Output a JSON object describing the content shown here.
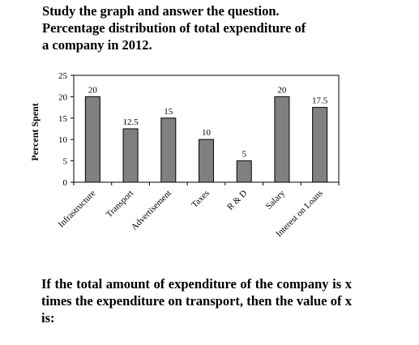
{
  "header": {
    "line1": "Study the graph and answer the question.",
    "line2": "Percentage distribution of total expenditure of",
    "line3": "a company in 2012."
  },
  "chart_data": {
    "type": "bar",
    "ylabel": "Percent Spent",
    "xlabel": "",
    "ylim": [
      0,
      25
    ],
    "yticks": [
      0,
      5,
      10,
      15,
      20,
      25
    ],
    "categories": [
      "Infrastructure",
      "Transport",
      "Advertisement",
      "Taxes",
      "R & D",
      "Salary",
      "Interest on Loans"
    ],
    "values": [
      20,
      12.5,
      15,
      10,
      5,
      20,
      17.5
    ],
    "data_labels": [
      "20",
      "12.5",
      "15",
      "10",
      "5",
      "20",
      "17.5"
    ],
    "bar_color": "#808080",
    "grid": false,
    "legend": "none"
  },
  "question": {
    "text": "If the total amount of expenditure of the company is x times the expenditure on transport, then the value of x is:"
  }
}
